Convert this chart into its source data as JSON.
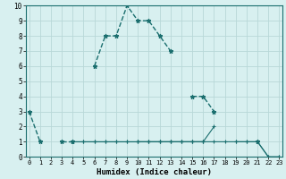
{
  "title": "",
  "xlabel": "Humidex (Indice chaleur)",
  "bg_color": "#d8f0f0",
  "grid_color": "#b8d8d8",
  "line_color": "#1a6e6e",
  "x_values": [
    0,
    1,
    2,
    3,
    4,
    5,
    6,
    7,
    8,
    9,
    10,
    11,
    12,
    13,
    14,
    15,
    16,
    17,
    18,
    19,
    20,
    21,
    22,
    23
  ],
  "line1": [
    3,
    1,
    null,
    1,
    1,
    null,
    6,
    8,
    8,
    10,
    9,
    9,
    8,
    7,
    null,
    4,
    4,
    3,
    null,
    null,
    null,
    1,
    null,
    null
  ],
  "line2": [
    null,
    null,
    null,
    null,
    1,
    1,
    1,
    1,
    1,
    1,
    1,
    1,
    1,
    1,
    1,
    1,
    1,
    null,
    null,
    null,
    null,
    null,
    null,
    null
  ],
  "line3": [
    null,
    null,
    null,
    null,
    1,
    1,
    1,
    1,
    1,
    1,
    1,
    1,
    1,
    1,
    1,
    1,
    1,
    1,
    1,
    1,
    1,
    1,
    0,
    0
  ],
  "line4": [
    null,
    null,
    null,
    null,
    null,
    null,
    null,
    null,
    null,
    null,
    1,
    1,
    1,
    1,
    1,
    1,
    1,
    2,
    null,
    1,
    1,
    1,
    0,
    0
  ],
  "xlim": [
    -0.3,
    23.3
  ],
  "ylim": [
    0,
    10
  ],
  "yticks": [
    0,
    1,
    2,
    3,
    4,
    5,
    6,
    7,
    8,
    9,
    10
  ],
  "xticks": [
    0,
    1,
    2,
    3,
    4,
    5,
    6,
    7,
    8,
    9,
    10,
    11,
    12,
    13,
    14,
    15,
    16,
    17,
    18,
    19,
    20,
    21,
    22,
    23
  ],
  "xlabel_fontsize": 6.5,
  "tick_fontsize": 5.0,
  "ytick_fontsize": 5.5,
  "lw_main": 1.0,
  "lw_flat": 0.8
}
